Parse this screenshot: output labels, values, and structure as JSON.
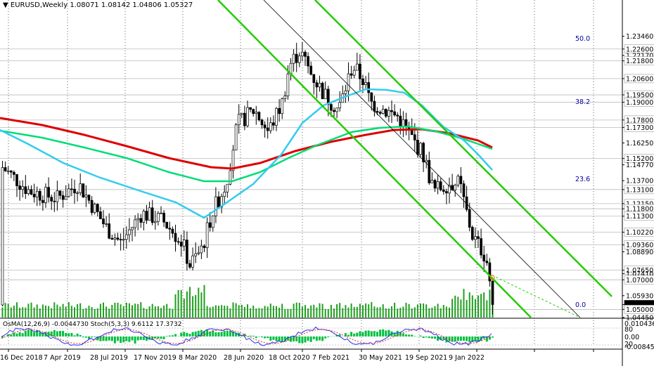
{
  "header": {
    "symbol": "EURUSD,Weekly",
    "ohlc": "1.08071 1.08142 1.04806 1.05327"
  },
  "oscillator": {
    "label": "OsMA(12,26,9) -0.0044730  Stoch(5,3,3) 9.6112 17.3732",
    "levels": [
      "0.01043637",
      "80",
      "0.00",
      "20",
      "-0.008455"
    ]
  },
  "chart_data": {
    "type": "candlestick",
    "symbol": "EURUSD",
    "timeframe": "Weekly",
    "last_bar": {
      "open": 1.08071,
      "high": 1.08142,
      "low": 1.04806,
      "close": 1.05327
    },
    "price_axis_labels": [
      "1.23460",
      "1.22600",
      "1.22170",
      "1.21800",
      "1.20600",
      "1.19500",
      "1.19000",
      "1.17800",
      "1.17300",
      "1.16250",
      "1.15200",
      "1.14770",
      "1.13700",
      "1.13100",
      "1.12150",
      "1.11800",
      "1.11300",
      "1.10220",
      "1.09360",
      "1.08890",
      "1.07650",
      "1.07410",
      "1.07000",
      "1.05930",
      "1.05327",
      "1.05000",
      "1.04450"
    ],
    "highlighted_levels": [
      "1.22600",
      "1.21800",
      "1.20600",
      "1.19500",
      "1.19000",
      "1.17800",
      "1.17300",
      "1.15200",
      "1.13100",
      "1.12150",
      "1.11800",
      "1.11300",
      "1.10220",
      "1.09360",
      "1.07650",
      "1.07000",
      "1.05000"
    ],
    "current_price": "1.05327",
    "time_axis_labels": [
      "16 Dec 2018",
      "7 Apr 2019",
      "28 Jul 2019",
      "17 Nov 2019",
      "8 Mar 2020",
      "28 Jun 2020",
      "18 Oct 2020",
      "7 Feb 2021",
      "30 May 2021",
      "19 Sep 2021",
      "9 Jan 2022"
    ],
    "fibonacci_levels": [
      "50.0",
      "38.2",
      "23.6",
      "0.0"
    ],
    "indicators": [
      {
        "name": "EMA 200",
        "color": "#dd0000"
      },
      {
        "name": "EMA 144",
        "color": "#00dd77"
      },
      {
        "name": "EMA 50",
        "color": "#33ccee"
      }
    ],
    "channel_color": "#22cc00",
    "bull_candle": "#ffffff",
    "bear_candle": "#000000"
  }
}
